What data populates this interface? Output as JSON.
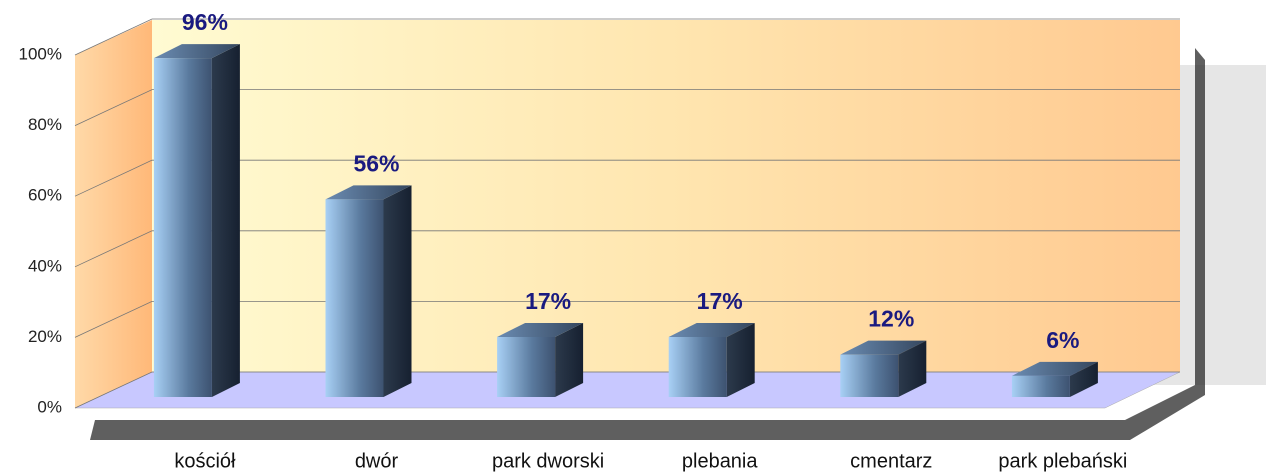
{
  "chart_data": {
    "type": "bar",
    "categories": [
      "kościół",
      "dwór",
      "park dworski",
      "plebania",
      "cmentarz",
      "park plebański"
    ],
    "values": [
      96,
      56,
      17,
      17,
      12,
      6
    ],
    "value_labels": [
      "96%",
      "56%",
      "17%",
      "17%",
      "12%",
      "6%"
    ],
    "ylim": [
      0,
      100
    ],
    "yticks": [
      {
        "value": 0,
        "label": "0%"
      },
      {
        "value": 20,
        "label": "20%"
      },
      {
        "value": 40,
        "label": "40%"
      },
      {
        "value": 60,
        "label": "60%"
      },
      {
        "value": 80,
        "label": "80%"
      },
      {
        "value": 100,
        "label": "100%"
      }
    ],
    "grid": true
  }
}
